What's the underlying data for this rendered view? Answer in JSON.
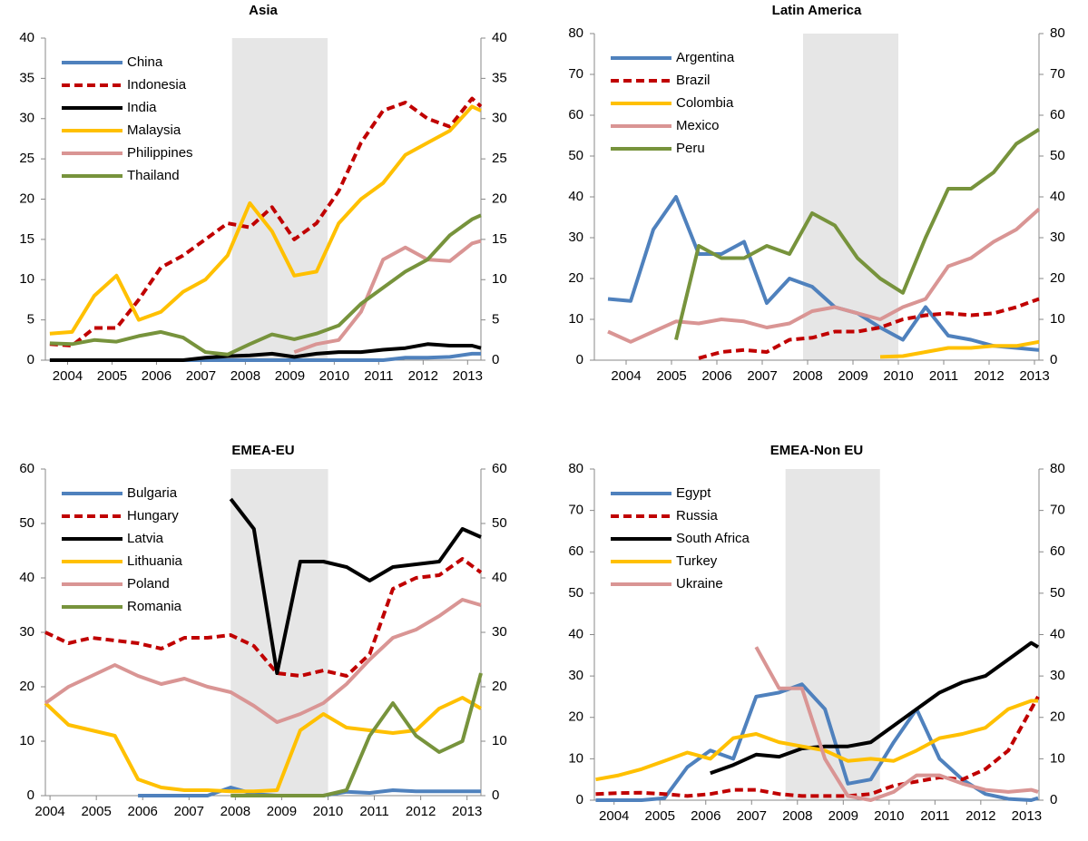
{
  "chart_data": [
    {
      "type": "line",
      "title": "Asia",
      "x": [
        2003.6,
        2004.1,
        2004.6,
        2005.1,
        2005.6,
        2006.1,
        2006.6,
        2007.1,
        2007.6,
        2008.1,
        2008.6,
        2009.1,
        2009.6,
        2010.1,
        2010.6,
        2011.1,
        2011.6,
        2012.1,
        2012.6,
        2013.1,
        2013.3
      ],
      "xlim": [
        2003.5,
        2013.3
      ],
      "xticks": [
        2004,
        2005,
        2006,
        2007,
        2008,
        2009,
        2010,
        2011,
        2012,
        2013
      ],
      "ylim": [
        0,
        40
      ],
      "yticks": [
        0,
        5,
        10,
        15,
        20,
        25,
        30,
        35,
        40
      ],
      "right_axis": true,
      "shaded_x": [
        2007.7,
        2009.85
      ],
      "series": [
        {
          "name": "China",
          "color": "#4f81bd",
          "dashed": false,
          "values": [
            0,
            0,
            0,
            0,
            0,
            0,
            0,
            0,
            0,
            0,
            0,
            0,
            0,
            0,
            0,
            0,
            0.3,
            0.3,
            0.4,
            0.8,
            0.8
          ]
        },
        {
          "name": "Indonesia",
          "color": "#c00000",
          "dashed": true,
          "values": [
            2,
            1.8,
            4,
            4,
            7.5,
            11.5,
            13,
            15,
            17,
            16.5,
            19,
            15,
            17,
            21,
            27,
            31,
            32,
            30,
            29,
            32.5,
            31.5
          ]
        },
        {
          "name": "India",
          "color": "#000000",
          "dashed": false,
          "values": [
            0,
            0,
            0,
            0,
            0,
            0,
            0,
            0.3,
            0.5,
            0.6,
            0.8,
            0.4,
            0.8,
            1,
            1,
            1.3,
            1.5,
            2,
            1.8,
            1.8,
            1.5
          ]
        },
        {
          "name": "Malaysia",
          "color": "#ffc000",
          "dashed": false,
          "values": [
            3.3,
            3.5,
            8,
            10.5,
            5,
            6,
            8.5,
            10,
            13,
            19.5,
            16,
            10.5,
            11,
            17,
            20,
            22,
            25.5,
            27,
            28.5,
            31.5,
            31
          ]
        },
        {
          "name": "Philippines",
          "color": "#d99594",
          "dashed": false,
          "values": [
            null,
            null,
            null,
            null,
            null,
            null,
            null,
            null,
            null,
            null,
            null,
            1,
            2,
            2.5,
            6,
            12.5,
            14,
            12.5,
            12.3,
            14.5,
            14.8
          ]
        },
        {
          "name": "Thailand",
          "color": "#77933c",
          "dashed": false,
          "values": [
            2.1,
            2,
            2.5,
            2.3,
            3,
            3.5,
            2.8,
            1,
            0.7,
            2,
            3.2,
            2.6,
            3.3,
            4.3,
            7,
            9,
            11,
            12.5,
            15.5,
            17.5,
            18
          ]
        }
      ]
    },
    {
      "type": "line",
      "title": "Latin America",
      "x": [
        2003.6,
        2004.1,
        2004.6,
        2005.1,
        2005.6,
        2006.1,
        2006.6,
        2007.1,
        2007.6,
        2008.1,
        2008.6,
        2009.1,
        2009.6,
        2010.1,
        2010.6,
        2011.1,
        2011.6,
        2012.1,
        2012.6,
        2013.1
      ],
      "xlim": [
        2003.3,
        2013.1
      ],
      "xticks": [
        2004,
        2005,
        2006,
        2007,
        2008,
        2009,
        2010,
        2011,
        2012,
        2013
      ],
      "ylim": [
        0,
        80
      ],
      "yticks": [
        0,
        10,
        20,
        30,
        40,
        50,
        60,
        70,
        80
      ],
      "right_axis": true,
      "shaded_x": [
        2007.9,
        2010.0
      ],
      "series": [
        {
          "name": "Argentina",
          "color": "#4f81bd",
          "dashed": false,
          "values": [
            15,
            14.5,
            32,
            40,
            26,
            26,
            29,
            14,
            20,
            18,
            13,
            11.5,
            8,
            5,
            13,
            6,
            5,
            3.5,
            3,
            2.5
          ]
        },
        {
          "name": "Brazil",
          "color": "#c00000",
          "dashed": true,
          "values": [
            null,
            null,
            null,
            null,
            0.5,
            2,
            2.5,
            2,
            5,
            5.5,
            7,
            7,
            8,
            10,
            11,
            11.5,
            11,
            11.5,
            13,
            15
          ]
        },
        {
          "name": "Colombia",
          "color": "#ffc000",
          "dashed": false,
          "values": [
            null,
            null,
            null,
            null,
            null,
            null,
            null,
            null,
            null,
            null,
            null,
            null,
            0.8,
            1,
            2,
            3,
            3,
            3.5,
            3.5,
            4.5
          ]
        },
        {
          "name": "Mexico",
          "color": "#d99594",
          "dashed": false,
          "values": [
            7,
            4.5,
            7,
            9.5,
            9,
            10,
            9.5,
            8,
            9,
            12,
            13,
            11.5,
            10,
            13,
            15,
            23,
            25,
            29,
            32,
            37
          ]
        },
        {
          "name": "Peru",
          "color": "#77933c",
          "dashed": false,
          "values": [
            null,
            null,
            null,
            5,
            28,
            25,
            25,
            28,
            26,
            36,
            33,
            25,
            20,
            16.5,
            30,
            42,
            42,
            46,
            53,
            56.5
          ]
        }
      ]
    },
    {
      "type": "line",
      "title": "EMEA-EU",
      "x": [
        2003.9,
        2004.4,
        2004.9,
        2005.4,
        2005.9,
        2006.4,
        2006.9,
        2007.4,
        2007.9,
        2008.4,
        2008.9,
        2009.4,
        2009.9,
        2010.4,
        2010.9,
        2011.4,
        2011.9,
        2012.4,
        2012.9,
        2013.3
      ],
      "xlim": [
        2003.9,
        2013.3
      ],
      "xticks": [
        2004,
        2005,
        2006,
        2007,
        2008,
        2009,
        2010,
        2011,
        2012,
        2013
      ],
      "ylim": [
        0,
        60
      ],
      "yticks": [
        0,
        10,
        20,
        30,
        40,
        50,
        60
      ],
      "right_axis": true,
      "shaded_x": [
        2007.9,
        2010.0
      ],
      "series": [
        {
          "name": "Bulgaria",
          "color": "#4f81bd",
          "dashed": false,
          "values": [
            null,
            null,
            null,
            null,
            0,
            0,
            0,
            0,
            1.5,
            0.3,
            0,
            0,
            0,
            0.7,
            0.5,
            1,
            0.8,
            0.8,
            0.8,
            0.8
          ]
        },
        {
          "name": "Hungary",
          "color": "#c00000",
          "dashed": true,
          "values": [
            30,
            28,
            29,
            28.5,
            28,
            27,
            29,
            29,
            29.5,
            27.5,
            22.5,
            22,
            23,
            22,
            26,
            38,
            40,
            40.5,
            43.5,
            41
          ]
        },
        {
          "name": "Latvia",
          "color": "#000000",
          "dashed": false,
          "values": [
            null,
            null,
            null,
            null,
            null,
            null,
            null,
            null,
            54.5,
            49,
            22.5,
            43,
            43,
            42,
            39.5,
            42,
            42.5,
            43,
            49,
            47.5
          ]
        },
        {
          "name": "Lithuania",
          "color": "#ffc000",
          "dashed": false,
          "values": [
            17,
            13,
            12,
            11,
            3,
            1.5,
            1,
            1,
            0.8,
            0.8,
            1,
            12,
            15,
            12.5,
            12,
            11.5,
            12,
            16,
            18,
            16
          ]
        },
        {
          "name": "Poland",
          "color": "#d99594",
          "dashed": false,
          "values": [
            17,
            20,
            22,
            24,
            22,
            20.5,
            21.5,
            20,
            19,
            16.5,
            13.5,
            15,
            17,
            20.5,
            25,
            29,
            30.5,
            33,
            36,
            35
          ]
        },
        {
          "name": "Romania",
          "color": "#77933c",
          "dashed": false,
          "values": [
            null,
            null,
            null,
            null,
            null,
            null,
            null,
            null,
            0,
            0,
            0,
            0,
            0,
            1,
            11,
            17,
            11,
            8,
            10,
            22.5
          ]
        }
      ]
    },
    {
      "type": "line",
      "title": "EMEA-Non EU",
      "x": [
        2003.6,
        2004.1,
        2004.6,
        2005.1,
        2005.6,
        2006.1,
        2006.6,
        2007.1,
        2007.6,
        2008.1,
        2008.6,
        2009.1,
        2009.6,
        2010.1,
        2010.6,
        2011.1,
        2011.6,
        2012.1,
        2012.6,
        2013.1,
        2013.25
      ],
      "xlim": [
        2003.57,
        2013.27
      ],
      "xticks": [
        2004,
        2005,
        2006,
        2007,
        2008,
        2009,
        2010,
        2011,
        2012,
        2013
      ],
      "ylim": [
        0,
        80
      ],
      "yticks": [
        0,
        10,
        20,
        30,
        40,
        50,
        60,
        70,
        80
      ],
      "right_axis": true,
      "shaded_x": [
        2007.74,
        2009.8
      ],
      "series": [
        {
          "name": "Egypt",
          "color": "#4f81bd",
          "dashed": false,
          "values": [
            0,
            0,
            0,
            0.5,
            8,
            12,
            10,
            25,
            26,
            28,
            22,
            4,
            5,
            14,
            22,
            10,
            5,
            1.5,
            0.3,
            0,
            0.5
          ]
        },
        {
          "name": "Russia",
          "color": "#c00000",
          "dashed": true,
          "values": [
            1.5,
            1.7,
            1.8,
            1.5,
            1,
            1.5,
            2.5,
            2.5,
            1.5,
            1,
            1,
            1,
            1.5,
            3.5,
            4.5,
            5.5,
            5,
            7.5,
            12,
            22,
            25
          ]
        },
        {
          "name": "South Africa",
          "color": "#000000",
          "dashed": false,
          "values": [
            null,
            null,
            null,
            null,
            null,
            6.5,
            8.5,
            11,
            10.5,
            12.5,
            13,
            13,
            14,
            18,
            22,
            26,
            28.5,
            30,
            34,
            38,
            37
          ]
        },
        {
          "name": "Turkey",
          "color": "#ffc000",
          "dashed": false,
          "values": [
            5,
            6,
            7.5,
            9.5,
            11.5,
            10,
            15,
            16,
            14,
            13,
            12,
            9.5,
            10,
            9.5,
            12,
            15,
            16,
            17.5,
            22,
            24,
            24
          ]
        },
        {
          "name": "Ukraine",
          "color": "#d99594",
          "dashed": false,
          "values": [
            null,
            null,
            null,
            null,
            null,
            null,
            null,
            37,
            27,
            27,
            10,
            1,
            0,
            2,
            6,
            6,
            4,
            2.5,
            2,
            2.5,
            2
          ]
        }
      ]
    }
  ]
}
